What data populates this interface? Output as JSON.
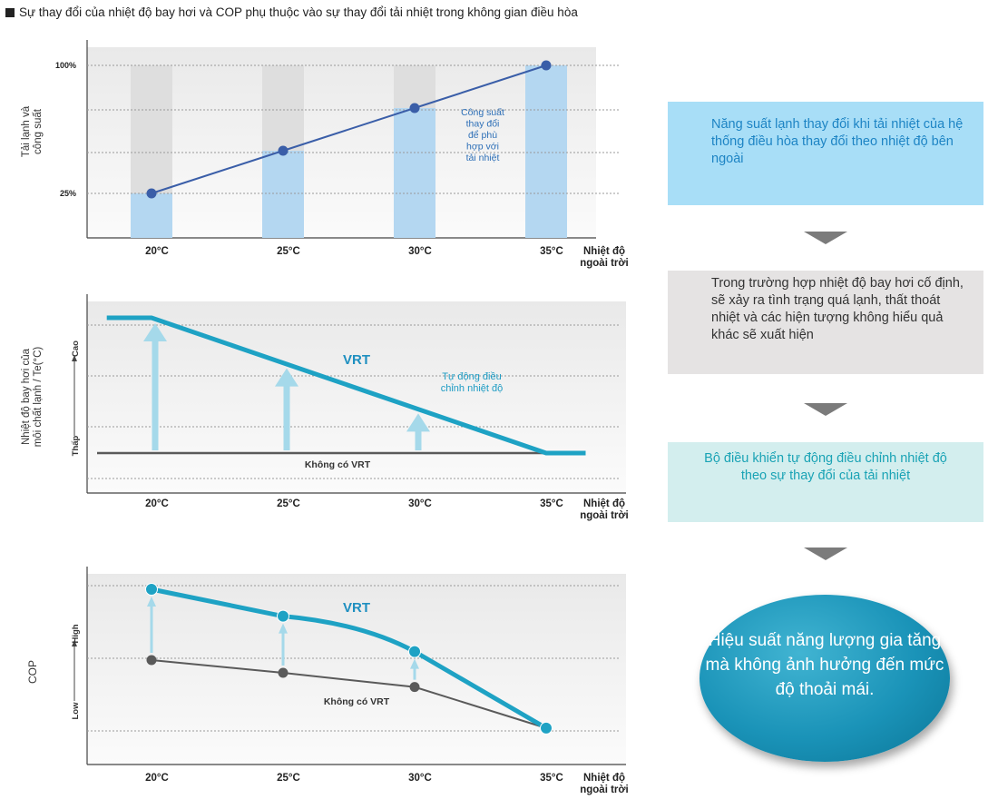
{
  "heading": "Sự thay đổi của nhiệt độ bay hơi và COP phụ thuộc vào sự thay đổi tải nhiệt trong không gian điều hòa",
  "colors": {
    "bar_light": "#b4d7f1",
    "bar_gray": "#dedede",
    "plot_bg": "#f3f3f3",
    "line_blue": "#3a5ea8",
    "vrt_teal": "#1ea2c4",
    "arrow_light": "#a5d9ea",
    "no_vrt_gray": "#5a5a5a"
  },
  "chart_data": [
    {
      "type": "bar",
      "ylabel": "Tải lạnh và công suất",
      "categories": [
        "20°C",
        "25°C",
        "30°C",
        "35°C"
      ],
      "x": [
        20,
        25,
        30,
        35
      ],
      "xlabel": "Nhiệt độ ngoài trời",
      "yticks": [
        "100%",
        "25%"
      ],
      "ylim": [
        0,
        100
      ],
      "bars": [
        25,
        50,
        75,
        100
      ],
      "line_values": [
        25,
        50,
        75,
        100
      ],
      "annotation": "Công suất thay đổi để phù hợp với tải nhiệt",
      "grid": true
    },
    {
      "type": "line",
      "ylabel": "Nhiệt độ bay hơi của môi chất lạnh / Te(°C)",
      "y_high_label": "Cao",
      "y_low_label": "Thấp",
      "categories": [
        "20°C",
        "25°C",
        "30°C",
        "35°C"
      ],
      "x": [
        20,
        25,
        30,
        35
      ],
      "xlabel": "Nhiệt độ ngoài trời",
      "series": [
        {
          "name": "VRT",
          "x": [
            18.3,
            20,
            35,
            36.5
          ],
          "values": [
            100,
            100,
            0,
            0
          ]
        },
        {
          "name": "Không có VRT",
          "x": [
            18,
            36.5
          ],
          "values": [
            0,
            0
          ]
        }
      ],
      "arrows_at": [
        20,
        25,
        30
      ],
      "annotation": "Tự động điều chỉnh nhiệt độ",
      "grid": true
    },
    {
      "type": "line",
      "ylabel": "COP",
      "y_high_label": "High",
      "y_low_label": "Low",
      "categories": [
        "20°C",
        "25°C",
        "30°C",
        "35°C"
      ],
      "x": [
        20,
        25,
        30,
        35
      ],
      "xlabel": "Nhiệt độ ngoài trời",
      "series": [
        {
          "name": "VRT",
          "x": [
            20,
            25,
            30,
            35
          ],
          "values": [
            100,
            81,
            56,
            2
          ]
        },
        {
          "name": "Không có VRT",
          "x": [
            20,
            25,
            30,
            35
          ],
          "values": [
            50,
            41,
            31,
            2
          ]
        }
      ],
      "arrows_at": [
        20,
        25,
        30
      ],
      "grid": true
    }
  ],
  "flow": {
    "box1": "Năng suất lạnh thay đổi khi tải nhiệt của hệ thống điều hòa thay đổi theo nhiệt độ bên ngoài",
    "box2": "Trong trường hợp nhiệt độ bay hơi cố định, sẽ xảy ra tình trạng quá lạnh, thất thoát nhiệt và các hiện tượng không hiểu quả khác sẽ xuất hiện",
    "box3": "Bộ điều khiển tự động điều chỉnh nhiệt độ theo sự thay đổi của tải nhiệt",
    "result": "Hiệu suất năng lượng gia tăng mà không ảnh hưởng đến mức độ thoải mái."
  }
}
